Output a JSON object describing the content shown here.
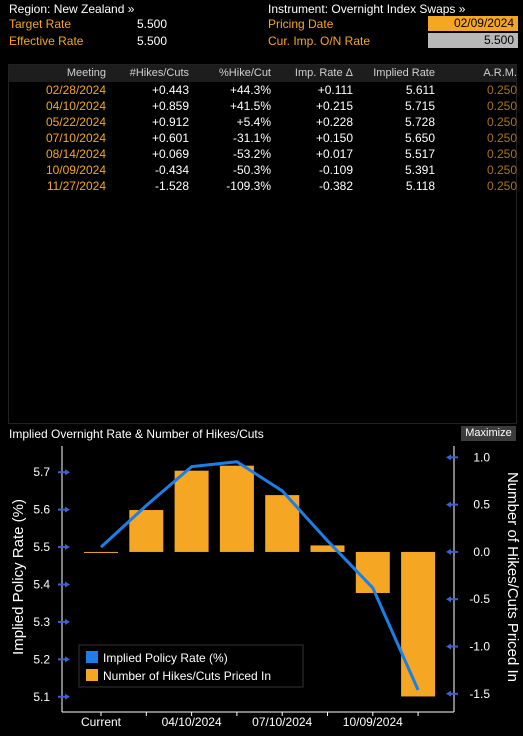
{
  "header": {
    "region_label": "Region: New Zealand »",
    "instrument_label": "Instrument: Overnight Index Swaps »",
    "target_rate_label": "Target Rate",
    "target_rate_value": "5.500",
    "effective_rate_label": "Effective Rate",
    "effective_rate_value": "5.500",
    "pricing_date_label": "Pricing Date",
    "pricing_date_value": "02/09/2024",
    "cur_imp_label": "Cur. Imp. O/N Rate",
    "cur_imp_value": "5.500"
  },
  "table": {
    "columns": [
      "Meeting",
      "#Hikes/Cuts",
      "%Hike/Cut",
      "Imp. Rate Δ",
      "Implied Rate",
      "A.R.M."
    ],
    "rows": [
      [
        "02/28/2024",
        "+0.443",
        "+44.3%",
        "+0.111",
        "5.611",
        "0.250"
      ],
      [
        "04/10/2024",
        "+0.859",
        "+41.5%",
        "+0.215",
        "5.715",
        "0.250"
      ],
      [
        "05/22/2024",
        "+0.912",
        "+5.4%",
        "+0.228",
        "5.728",
        "0.250"
      ],
      [
        "07/10/2024",
        "+0.601",
        "-31.1%",
        "+0.150",
        "5.650",
        "0.250"
      ],
      [
        "08/14/2024",
        "+0.069",
        "-53.2%",
        "+0.017",
        "5.517",
        "0.250"
      ],
      [
        "10/09/2024",
        "-0.434",
        "-50.3%",
        "-0.109",
        "5.391",
        "0.250"
      ],
      [
        "11/27/2024",
        "-1.528",
        "-109.3%",
        "-0.382",
        "5.118",
        "0.250"
      ]
    ]
  },
  "chart": {
    "title": "Implied Overnight Rate & Number of Hikes/Cuts",
    "maximize_label": "Maximize",
    "colors": {
      "line": "#1a7fe8",
      "bar": "#f5a623",
      "axis": "#3f5fd0"
    }
  },
  "chart_data": {
    "type": "bar",
    "categories": [
      "Current",
      "02/28/2024",
      "04/10/2024",
      "05/22/2024",
      "07/10/2024",
      "08/14/2024",
      "10/09/2024",
      "11/27/2024"
    ],
    "x_tick_labels": [
      "Current",
      "04/10/2024",
      "07/10/2024",
      "10/09/2024"
    ],
    "series": [
      {
        "name": "Implied Policy Rate (%)",
        "type": "line",
        "axis": "left",
        "values": [
          5.5,
          5.611,
          5.715,
          5.728,
          5.65,
          5.517,
          5.391,
          5.118
        ]
      },
      {
        "name": "Number of Hikes/Cuts Priced In",
        "type": "bar",
        "axis": "right",
        "values": [
          0,
          0.443,
          0.859,
          0.912,
          0.601,
          0.069,
          -0.434,
          -1.528
        ]
      }
    ],
    "ylabel": "Implied Policy Rate (%)",
    "y2label": "Number of Hikes/Cuts Priced In",
    "ylim": [
      5.07,
      5.77
    ],
    "y2lim": [
      -1.65,
      1.12
    ],
    "yticks": [
      "5.1",
      "5.2",
      "5.3",
      "5.4",
      "5.5",
      "5.6",
      "5.7"
    ],
    "y2ticks": [
      "-1.5",
      "-1.0",
      "-0.5",
      "0.0",
      "0.5",
      "1.0"
    ],
    "legend": "bottom-left",
    "grid": false
  }
}
